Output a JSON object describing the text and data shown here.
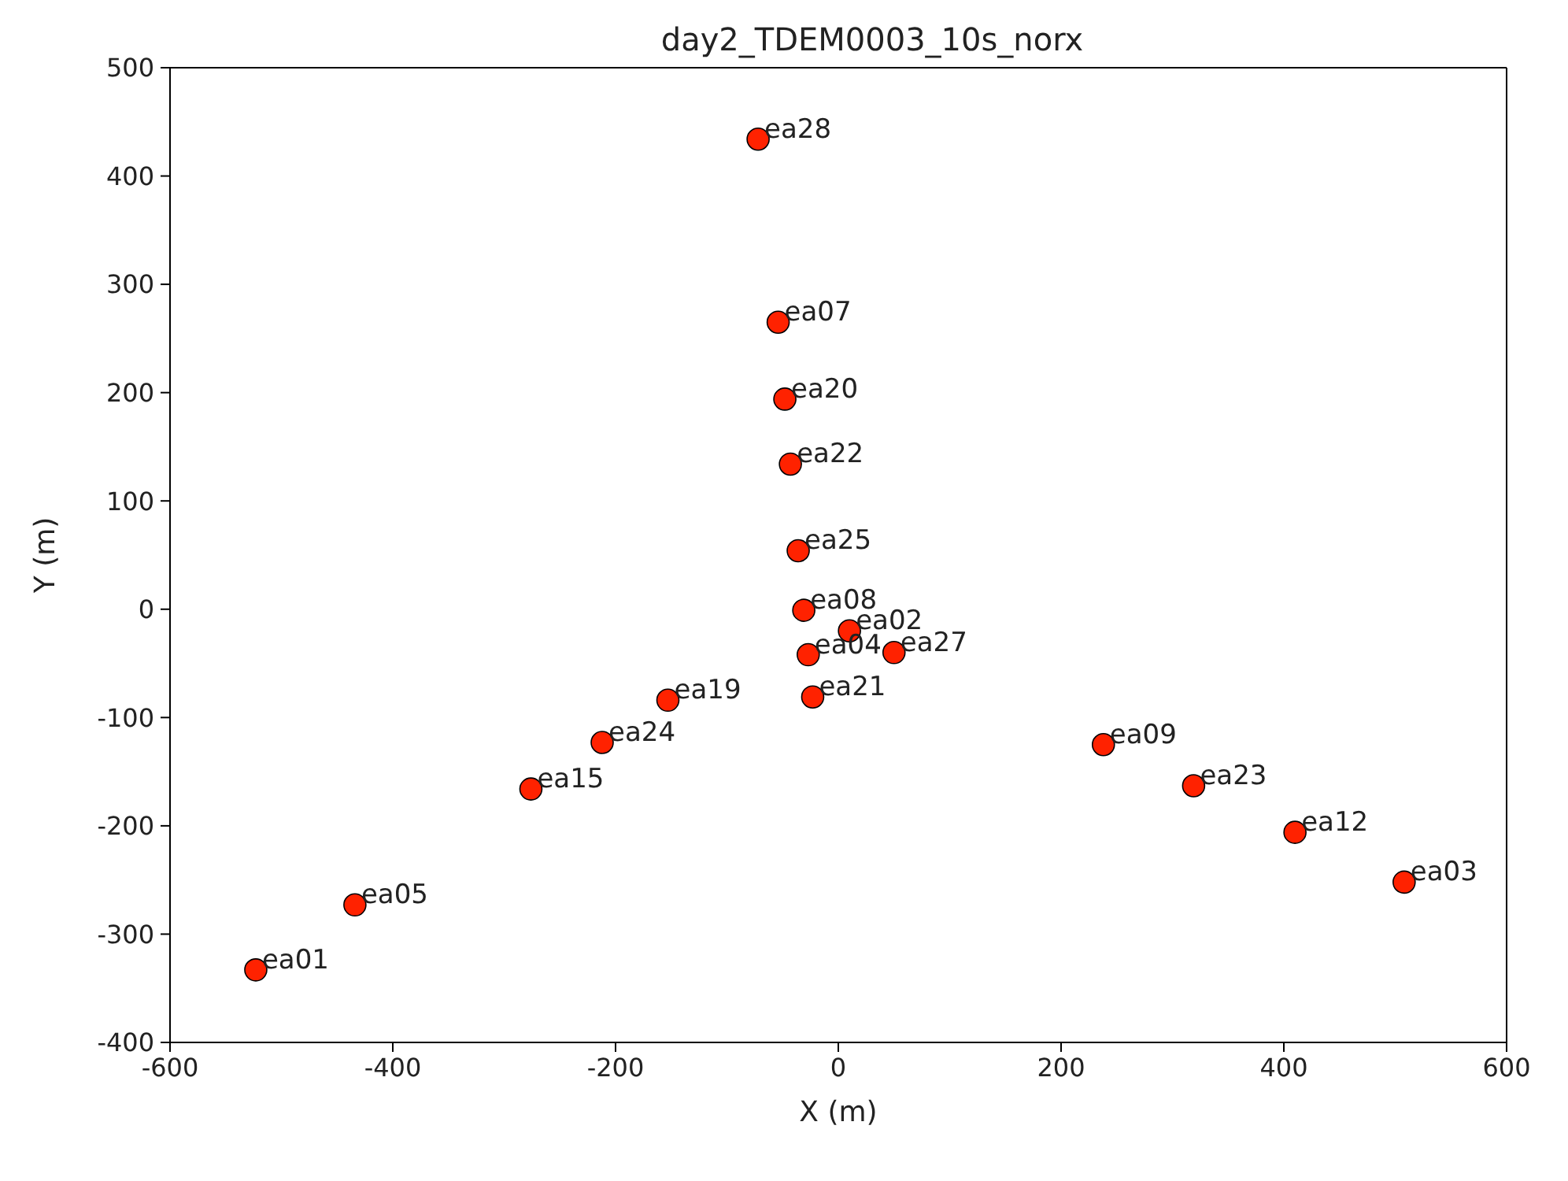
{
  "chart_data": {
    "type": "scatter",
    "title": "day2_TDEM0003_10s_norx",
    "xlabel": "X (m)",
    "ylabel": "Y (m)",
    "x": [
      -72,
      -54,
      -48,
      -43,
      -36,
      -31,
      10,
      -27,
      50,
      -23,
      -153,
      -212,
      -276,
      -434,
      -523,
      238,
      319,
      410,
      508
    ],
    "series": [
      {
        "color": "#ff2200",
        "values": [
          434,
          265,
          194,
          134,
          54,
          -1,
          -20,
          -42,
          -40,
          -81,
          -84,
          -123,
          -166,
          -273,
          -333,
          -125,
          -163,
          -206,
          -252
        ]
      }
    ],
    "marker": "circle",
    "legend": false,
    "xlim": [
      -600,
      600
    ],
    "xticks": [
      -600,
      -400,
      -200,
      0,
      200,
      400,
      600
    ],
    "ylim": [
      -400,
      500
    ],
    "yticks": [
      -400,
      -300,
      -200,
      -100,
      0,
      100,
      200,
      300,
      400,
      500
    ],
    "annotations": [
      {
        "text": "ea28",
        "x": -72,
        "y": 434
      },
      {
        "text": "ea07",
        "x": -54,
        "y": 265
      },
      {
        "text": "ea20",
        "x": -48,
        "y": 194
      },
      {
        "text": "ea22",
        "x": -43,
        "y": 134
      },
      {
        "text": "ea25",
        "x": -36,
        "y": 54
      },
      {
        "text": "ea08",
        "x": -31,
        "y": -1
      },
      {
        "text": "ea02",
        "x": 10,
        "y": -20
      },
      {
        "text": "ea04",
        "x": -27,
        "y": -42
      },
      {
        "text": "ea27",
        "x": 50,
        "y": -40
      },
      {
        "text": "ea21",
        "x": -23,
        "y": -81
      },
      {
        "text": "ea19",
        "x": -153,
        "y": -84
      },
      {
        "text": "ea24",
        "x": -212,
        "y": -123
      },
      {
        "text": "ea15",
        "x": -276,
        "y": -166
      },
      {
        "text": "ea05",
        "x": -434,
        "y": -273
      },
      {
        "text": "ea01",
        "x": -523,
        "y": -333
      },
      {
        "text": "ea09",
        "x": 238,
        "y": -125
      },
      {
        "text": "ea23",
        "x": 319,
        "y": -163
      },
      {
        "text": "ea12",
        "x": 410,
        "y": -206
      },
      {
        "text": "ea03",
        "x": 508,
        "y": -252
      }
    ]
  }
}
